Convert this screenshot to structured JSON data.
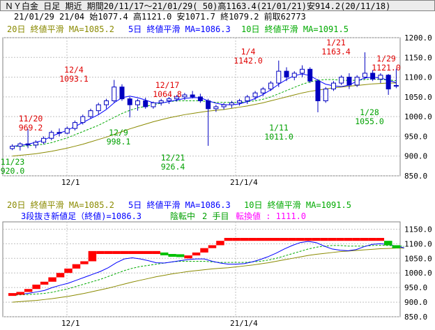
{
  "header": {
    "line1": "ＮＹ白金 日足 期近 期間20/11/17～21/01/29( 50)高1163.4(21/01/21)安914.2(20/11/18)",
    "line2": "21/01/29 21/04 始1077.4 高1121.0 安1071.7 終1079.2 前取62773"
  },
  "colors": {
    "ma20": "#8a8a00",
    "ma5": "#0000ff",
    "ma10": "#00aa00",
    "up_candle": "#ffffff",
    "down_candle": "#0000c0",
    "grid": "#c0c0c0",
    "annotation_high": "#e00000",
    "annotation_low": "#00a000",
    "rising_block": "#ff0000",
    "falling_block": "#00c000",
    "info_blue": "#0000ff",
    "info_magenta": "#ff00ff",
    "info_green": "#00a000"
  },
  "top_panel": {
    "legend_ma20": "20日 終値平滑 MA=1085.2",
    "legend_ma5": "5日 終値平滑 MA=1086.3",
    "legend_ma10": "10日 終値平滑 MA=1091.5",
    "x_ticks": [
      "12/1",
      "21/1/4"
    ],
    "y_ticks": [
      "1200.0",
      "1150.0",
      "1100.0",
      "1050.0",
      "1000.0",
      "950.0",
      "900.0",
      "850.0"
    ],
    "annotations": [
      {
        "date": "11/20",
        "value": "969.2",
        "kind": "high"
      },
      {
        "date": "12/4",
        "value": "1093.1",
        "kind": "high"
      },
      {
        "date": "12/17",
        "value": "1064.8",
        "kind": "high"
      },
      {
        "date": "1/4",
        "value": "1142.0",
        "kind": "high"
      },
      {
        "date": "1/21",
        "value": "1163.4",
        "kind": "high"
      },
      {
        "date": "1/29",
        "value": "1121.0",
        "kind": "high"
      },
      {
        "date": "11/23",
        "value": "920.0",
        "kind": "low"
      },
      {
        "date": "12/9",
        "value": "998.1",
        "kind": "low"
      },
      {
        "date": "12/21",
        "value": "926.4",
        "kind": "low"
      },
      {
        "date": "1/11",
        "value": "1011.0",
        "kind": "low"
      },
      {
        "date": "1/28",
        "value": "1055.0",
        "kind": "low"
      }
    ]
  },
  "bottom_panel": {
    "legend_ma20": "20日 終値平滑 MA=1085.2",
    "legend_ma5": "5日 終値平滑 MA=1086.3",
    "legend_ma10": "10日 終値平滑 MA=1091.5",
    "info_a": "3段抜き新値足（終値)=1086.3",
    "info_b": "陰転中",
    "info_c": "2 手目",
    "info_d": "転換値 : 1111.0",
    "x_ticks": [
      "12/1",
      "21/1/4"
    ],
    "y_ticks": [
      "1150.0",
      "1100.0",
      "1050.0",
      "1000.0",
      "950.0",
      "900.0",
      "850.0"
    ]
  },
  "chart_data": [
    {
      "type": "candlestick",
      "title": "ＮＹ白金 日足",
      "y_range": [
        850,
        1200
      ],
      "x_labels": [
        "12/1",
        "21/1/4"
      ],
      "candles": [
        {
          "o": 919,
          "h": 930,
          "l": 915,
          "c": 925
        },
        {
          "o": 925,
          "h": 935,
          "l": 914,
          "c": 931
        },
        {
          "o": 931,
          "h": 969,
          "l": 920,
          "c": 928
        },
        {
          "o": 928,
          "h": 940,
          "l": 920,
          "c": 935
        },
        {
          "o": 935,
          "h": 950,
          "l": 930,
          "c": 945
        },
        {
          "o": 945,
          "h": 965,
          "l": 940,
          "c": 960
        },
        {
          "o": 960,
          "h": 970,
          "l": 950,
          "c": 958
        },
        {
          "o": 958,
          "h": 975,
          "l": 955,
          "c": 970
        },
        {
          "o": 970,
          "h": 990,
          "l": 965,
          "c": 985
        },
        {
          "o": 985,
          "h": 1005,
          "l": 980,
          "c": 1000
        },
        {
          "o": 1000,
          "h": 1020,
          "l": 995,
          "c": 1015
        },
        {
          "o": 1015,
          "h": 1035,
          "l": 1005,
          "c": 1030
        },
        {
          "o": 1030,
          "h": 1045,
          "l": 1020,
          "c": 1040
        },
        {
          "o": 1040,
          "h": 1093,
          "l": 1035,
          "c": 1075
        },
        {
          "o": 1075,
          "h": 1082,
          "l": 1040,
          "c": 1045
        },
        {
          "o": 1045,
          "h": 1050,
          "l": 998,
          "c": 1030
        },
        {
          "o": 1030,
          "h": 1045,
          "l": 1015,
          "c": 1040
        },
        {
          "o": 1040,
          "h": 1048,
          "l": 1020,
          "c": 1025
        },
        {
          "o": 1025,
          "h": 1038,
          "l": 1020,
          "c": 1035
        },
        {
          "o": 1035,
          "h": 1045,
          "l": 1028,
          "c": 1040
        },
        {
          "o": 1040,
          "h": 1050,
          "l": 1032,
          "c": 1045
        },
        {
          "o": 1045,
          "h": 1055,
          "l": 1038,
          "c": 1050
        },
        {
          "o": 1050,
          "h": 1060,
          "l": 1042,
          "c": 1055
        },
        {
          "o": 1055,
          "h": 1065,
          "l": 1046,
          "c": 1050
        },
        {
          "o": 1050,
          "h": 1058,
          "l": 1035,
          "c": 1040
        },
        {
          "o": 1040,
          "h": 1045,
          "l": 926,
          "c": 1020
        },
        {
          "o": 1020,
          "h": 1030,
          "l": 1012,
          "c": 1025
        },
        {
          "o": 1025,
          "h": 1035,
          "l": 1018,
          "c": 1030
        },
        {
          "o": 1030,
          "h": 1040,
          "l": 1022,
          "c": 1035
        },
        {
          "o": 1035,
          "h": 1045,
          "l": 1028,
          "c": 1040
        },
        {
          "o": 1040,
          "h": 1055,
          "l": 1032,
          "c": 1050
        },
        {
          "o": 1050,
          "h": 1065,
          "l": 1042,
          "c": 1060
        },
        {
          "o": 1060,
          "h": 1075,
          "l": 1052,
          "c": 1070
        },
        {
          "o": 1070,
          "h": 1090,
          "l": 1065,
          "c": 1085
        },
        {
          "o": 1085,
          "h": 1142,
          "l": 1075,
          "c": 1115
        },
        {
          "o": 1115,
          "h": 1125,
          "l": 1090,
          "c": 1100
        },
        {
          "o": 1100,
          "h": 1115,
          "l": 1092,
          "c": 1110
        },
        {
          "o": 1110,
          "h": 1130,
          "l": 1100,
          "c": 1120
        },
        {
          "o": 1120,
          "h": 1125,
          "l": 1085,
          "c": 1090
        },
        {
          "o": 1090,
          "h": 1095,
          "l": 1011,
          "c": 1040
        },
        {
          "o": 1040,
          "h": 1075,
          "l": 1035,
          "c": 1070
        },
        {
          "o": 1070,
          "h": 1090,
          "l": 1065,
          "c": 1085
        },
        {
          "o": 1085,
          "h": 1105,
          "l": 1080,
          "c": 1100
        },
        {
          "o": 1100,
          "h": 1110,
          "l": 1070,
          "c": 1080
        },
        {
          "o": 1080,
          "h": 1105,
          "l": 1075,
          "c": 1100
        },
        {
          "o": 1100,
          "h": 1163,
          "l": 1095,
          "c": 1110
        },
        {
          "o": 1110,
          "h": 1118,
          "l": 1090,
          "c": 1095
        },
        {
          "o": 1095,
          "h": 1110,
          "l": 1085,
          "c": 1105
        },
        {
          "o": 1105,
          "h": 1108,
          "l": 1055,
          "c": 1070
        },
        {
          "o": 1077,
          "h": 1121,
          "l": 1072,
          "c": 1079
        }
      ],
      "ma5": [
        925,
        927,
        930,
        935,
        940,
        950,
        958,
        965,
        975,
        985,
        995,
        1005,
        1018,
        1035,
        1048,
        1052,
        1048,
        1042,
        1035,
        1034,
        1038,
        1042,
        1046,
        1048,
        1048,
        1040,
        1034,
        1030,
        1030,
        1032,
        1038,
        1046,
        1056,
        1068,
        1082,
        1094,
        1104,
        1108,
        1104,
        1092,
        1082,
        1078,
        1076,
        1080,
        1090,
        1098,
        1100,
        1098,
        1092,
        1086
      ],
      "ma10": [
        924,
        925,
        926,
        928,
        930,
        934,
        940,
        946,
        954,
        962,
        970,
        978,
        988,
        998,
        1008,
        1016,
        1022,
        1026,
        1030,
        1034,
        1038,
        1040,
        1040,
        1040,
        1040,
        1038,
        1036,
        1036,
        1036,
        1036,
        1038,
        1040,
        1044,
        1050,
        1058,
        1066,
        1074,
        1082,
        1088,
        1092,
        1094,
        1094,
        1092,
        1092,
        1092,
        1094,
        1095,
        1094,
        1093,
        1091
      ],
      "ma20": [
        900,
        902,
        904,
        906,
        909,
        912,
        916,
        920,
        925,
        930,
        936,
        942,
        948,
        955,
        962,
        969,
        975,
        981,
        987,
        992,
        997,
        1001,
        1005,
        1008,
        1011,
        1014,
        1016,
        1018,
        1021,
        1024,
        1027,
        1031,
        1035,
        1040,
        1045,
        1050,
        1055,
        1060,
        1064,
        1067,
        1070,
        1073,
        1075,
        1077,
        1079,
        1081,
        1083,
        1084,
        1085,
        1085
      ]
    },
    {
      "type": "bar",
      "title": "3段抜き新値足（終値)=1086.3",
      "y_range": [
        850,
        1175
      ],
      "blocks": [
        {
          "kind": "up",
          "lo": 925,
          "hi": 931
        },
        {
          "kind": "up",
          "lo": 931,
          "hi": 935
        },
        {
          "kind": "up",
          "lo": 935,
          "hi": 945
        },
        {
          "kind": "up",
          "lo": 945,
          "hi": 960
        },
        {
          "kind": "up",
          "lo": 960,
          "hi": 970
        },
        {
          "kind": "up",
          "lo": 970,
          "hi": 985
        },
        {
          "kind": "up",
          "lo": 985,
          "hi": 1000
        },
        {
          "kind": "up",
          "lo": 1000,
          "hi": 1015
        },
        {
          "kind": "up",
          "lo": 1015,
          "hi": 1030
        },
        {
          "kind": "up",
          "lo": 1030,
          "hi": 1040
        },
        {
          "kind": "up",
          "lo": 1040,
          "hi": 1075
        },
        {
          "kind": "up",
          "lo": 1065,
          "hi": 1075
        },
        {
          "kind": "up",
          "lo": 1065,
          "hi": 1075
        },
        {
          "kind": "up",
          "lo": 1065,
          "hi": 1075
        },
        {
          "kind": "up",
          "lo": 1065,
          "hi": 1075
        },
        {
          "kind": "up",
          "lo": 1065,
          "hi": 1075
        },
        {
          "kind": "up",
          "lo": 1065,
          "hi": 1075
        },
        {
          "kind": "up",
          "lo": 1065,
          "hi": 1075
        },
        {
          "kind": "up",
          "lo": 1065,
          "hi": 1075
        },
        {
          "kind": "down",
          "lo": 1065,
          "hi": 1070
        },
        {
          "kind": "down",
          "lo": 1058,
          "hi": 1065
        },
        {
          "kind": "down",
          "lo": 1058,
          "hi": 1064
        },
        {
          "kind": "up",
          "lo": 1050,
          "hi": 1060
        },
        {
          "kind": "up",
          "lo": 1060,
          "hi": 1070
        },
        {
          "kind": "up",
          "lo": 1070,
          "hi": 1085
        },
        {
          "kind": "up",
          "lo": 1085,
          "hi": 1095
        },
        {
          "kind": "up",
          "lo": 1095,
          "hi": 1110
        },
        {
          "kind": "up",
          "lo": 1110,
          "hi": 1120
        },
        {
          "kind": "up",
          "lo": 1110,
          "hi": 1120
        },
        {
          "kind": "up",
          "lo": 1110,
          "hi": 1120
        },
        {
          "kind": "up",
          "lo": 1110,
          "hi": 1120
        },
        {
          "kind": "up",
          "lo": 1110,
          "hi": 1120
        },
        {
          "kind": "up",
          "lo": 1110,
          "hi": 1120
        },
        {
          "kind": "up",
          "lo": 1110,
          "hi": 1120
        },
        {
          "kind": "up",
          "lo": 1110,
          "hi": 1120
        },
        {
          "kind": "up",
          "lo": 1110,
          "hi": 1120
        },
        {
          "kind": "up",
          "lo": 1110,
          "hi": 1120
        },
        {
          "kind": "up",
          "lo": 1110,
          "hi": 1120
        },
        {
          "kind": "up",
          "lo": 1110,
          "hi": 1120
        },
        {
          "kind": "up",
          "lo": 1110,
          "hi": 1120
        },
        {
          "kind": "up",
          "lo": 1110,
          "hi": 1120
        },
        {
          "kind": "up",
          "lo": 1110,
          "hi": 1120
        },
        {
          "kind": "up",
          "lo": 1110,
          "hi": 1120
        },
        {
          "kind": "up",
          "lo": 1110,
          "hi": 1120
        },
        {
          "kind": "up",
          "lo": 1110,
          "hi": 1120
        },
        {
          "kind": "up",
          "lo": 1110,
          "hi": 1120
        },
        {
          "kind": "up",
          "lo": 1110,
          "hi": 1120
        },
        {
          "kind": "down",
          "lo": 1095,
          "hi": 1110
        },
        {
          "kind": "down",
          "lo": 1085,
          "hi": 1095
        }
      ]
    }
  ]
}
